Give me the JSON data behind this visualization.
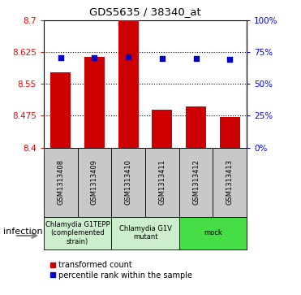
{
  "title": "GDS5635 / 38340_at",
  "samples": [
    "GSM1313408",
    "GSM1313409",
    "GSM1313410",
    "GSM1313411",
    "GSM1313412",
    "GSM1313413"
  ],
  "bar_values": [
    8.578,
    8.615,
    8.7,
    8.49,
    8.497,
    8.473
  ],
  "percentile_values": [
    8.612,
    8.613,
    8.614,
    8.611,
    8.611,
    8.609
  ],
  "bar_bottom": 8.4,
  "ylim": [
    8.4,
    8.7
  ],
  "yticks_left": [
    8.4,
    8.475,
    8.55,
    8.625,
    8.7
  ],
  "yticks_right": [
    0,
    25,
    50,
    75,
    100
  ],
  "bar_color": "#cc0000",
  "percentile_color": "#0000cc",
  "group_configs": [
    {
      "indices": [
        0,
        1
      ],
      "label": "Chlamydia G1TEPP\n(complemented\nstrain)",
      "color": "#cceecc"
    },
    {
      "indices": [
        2,
        3
      ],
      "label": "Chlamydia G1V\nmutant",
      "color": "#cceecc"
    },
    {
      "indices": [
        4,
        5
      ],
      "label": "mock",
      "color": "#44dd44"
    }
  ],
  "infection_label": "infection",
  "legend_bar_label": "transformed count",
  "legend_perc_label": "percentile rank within the sample",
  "sample_box_color": "#c8c8c8",
  "fig_width": 3.71,
  "fig_height": 3.63
}
